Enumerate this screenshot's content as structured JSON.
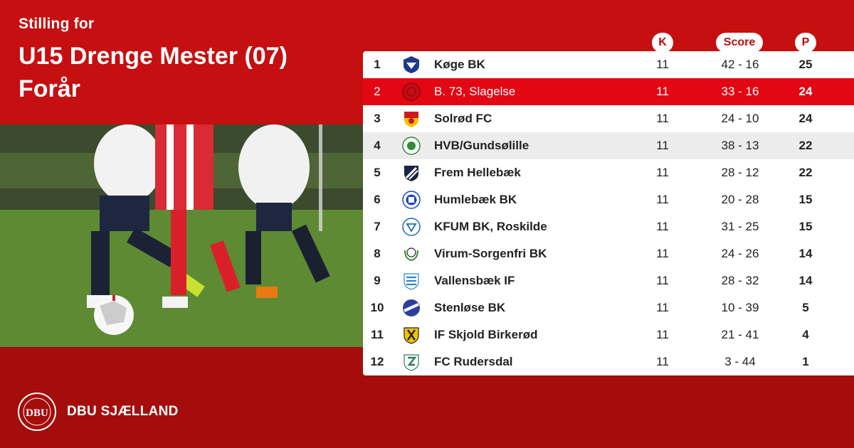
{
  "header": {
    "subtitle": "Stilling for",
    "title": "U15 Drenge Mester (07) Forår"
  },
  "columns": {
    "k": "K",
    "score": "Score",
    "p": "P"
  },
  "colors": {
    "primary_red": "#c50f10",
    "dark_red": "#a40d0b",
    "highlight_red": "#e30613",
    "row_white": "#ffffff",
    "row_grey": "#ececec"
  },
  "standings": [
    {
      "pos": "1",
      "team": "Køge BK",
      "k": "11",
      "score": "42 - 16",
      "p": "25",
      "logo": "koge-bk-crest-icon"
    },
    {
      "pos": "2",
      "team": "B. 73, Slagelse",
      "k": "11",
      "score": "33 - 16",
      "p": "24",
      "logo": "b73-slagelse-crest-icon",
      "highlighted": true
    },
    {
      "pos": "3",
      "team": "Solrød FC",
      "k": "11",
      "score": "24 - 10",
      "p": "24",
      "logo": "solrod-fc-crest-icon"
    },
    {
      "pos": "4",
      "team": "HVB/Gundsølille",
      "k": "11",
      "score": "38 - 13",
      "p": "22",
      "logo": "hvb-gundsolille-crest-icon"
    },
    {
      "pos": "5",
      "team": "Frem Hellebæk",
      "k": "11",
      "score": "28 - 12",
      "p": "22",
      "logo": "frem-hellebaek-crest-icon"
    },
    {
      "pos": "6",
      "team": "Humlebæk BK",
      "k": "11",
      "score": "20 - 28",
      "p": "15",
      "logo": "humlebaek-bk-crest-icon"
    },
    {
      "pos": "7",
      "team": "KFUM BK, Roskilde",
      "k": "11",
      "score": "31 - 25",
      "p": "15",
      "logo": "kfum-roskilde-crest-icon"
    },
    {
      "pos": "8",
      "team": "Virum-Sorgenfri BK",
      "k": "11",
      "score": "24 - 26",
      "p": "14",
      "logo": "virum-sorgenfri-crest-icon"
    },
    {
      "pos": "9",
      "team": "Vallensbæk IF",
      "k": "11",
      "score": "28 - 32",
      "p": "14",
      "logo": "vallensbaek-if-crest-icon"
    },
    {
      "pos": "10",
      "team": "Stenløse BK",
      "k": "11",
      "score": "10 - 39",
      "p": "5",
      "logo": "stenlose-bk-crest-icon"
    },
    {
      "pos": "11",
      "team": "IF Skjold Birkerød",
      "k": "11",
      "score": "21 - 41",
      "p": "4",
      "logo": "skjold-birkerod-crest-icon"
    },
    {
      "pos": "12",
      "team": "FC Rudersdal",
      "k": "11",
      "score": "3 - 44",
      "p": "1",
      "logo": "fc-rudersdal-crest-icon"
    }
  ],
  "footer": {
    "brand": "DBU SJÆLLAND",
    "logo_text": "DBU"
  }
}
